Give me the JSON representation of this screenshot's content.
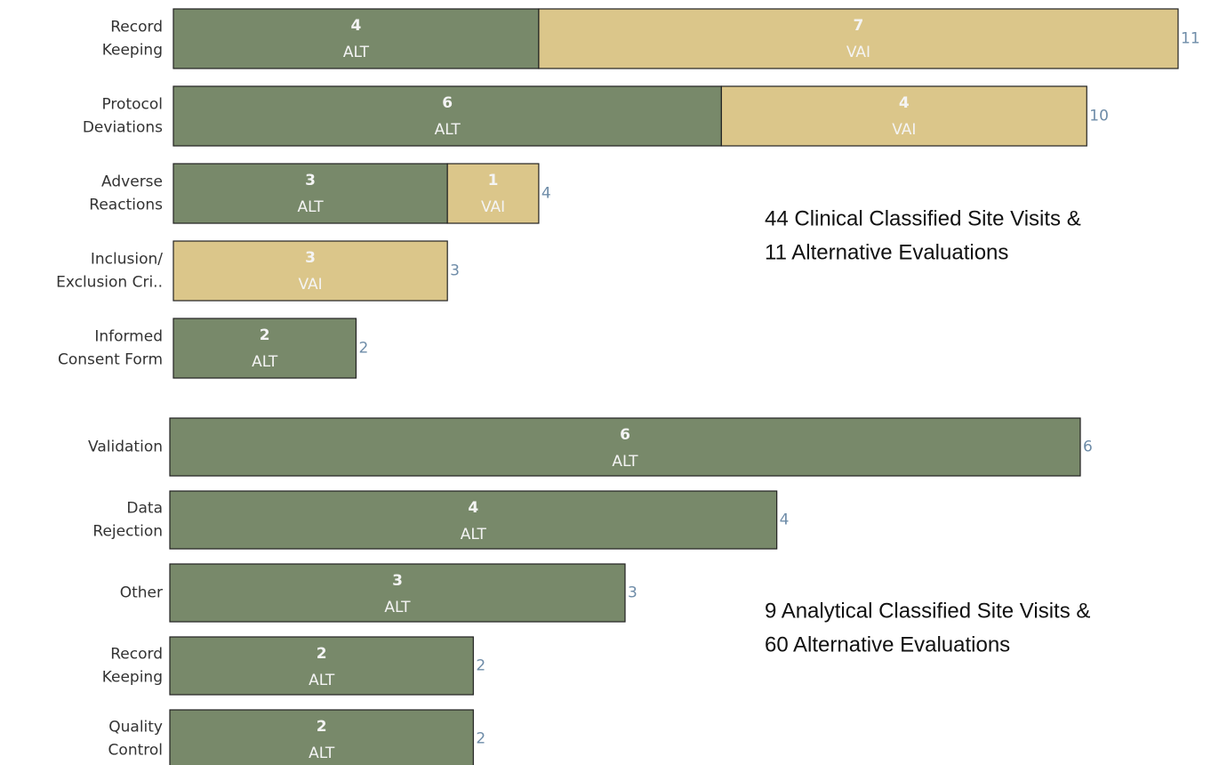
{
  "chart_data": [
    {
      "type": "stacked-bar-horizontal",
      "categories": [
        [
          "Record",
          "Keeping"
        ],
        [
          "Protocol",
          "Deviations"
        ],
        [
          "Adverse",
          "Reactions"
        ],
        [
          "Inclusion/",
          "Exclusion Cri.."
        ],
        [
          "Informed",
          "Consent Form"
        ]
      ],
      "series": [
        {
          "name": "ALT",
          "color": "#78896a",
          "values": [
            4,
            6,
            3,
            null,
            2
          ]
        },
        {
          "name": "VAI",
          "color": "#dbc68a",
          "values": [
            7,
            4,
            1,
            3,
            null
          ]
        }
      ],
      "totals": [
        11,
        10,
        4,
        3,
        2
      ],
      "xlim": [
        0,
        11
      ],
      "annotation": [
        "44 Clinical Classified Site Visits &",
        "11 Alternative Evaluations"
      ]
    },
    {
      "type": "stacked-bar-horizontal",
      "categories": [
        [
          "Validation"
        ],
        [
          "Data",
          "Rejection"
        ],
        [
          "Other"
        ],
        [
          "Record",
          "Keeping"
        ],
        [
          "Quality",
          "Control"
        ]
      ],
      "series": [
        {
          "name": "ALT",
          "color": "#78896a",
          "values": [
            6,
            4,
            3,
            2,
            2
          ]
        }
      ],
      "totals": [
        6,
        4,
        3,
        2,
        2
      ],
      "xlim": [
        0,
        6
      ],
      "annotation": [
        "9 Analytical Classified Site Visits &",
        "60 Alternative Evaluations"
      ]
    }
  ]
}
